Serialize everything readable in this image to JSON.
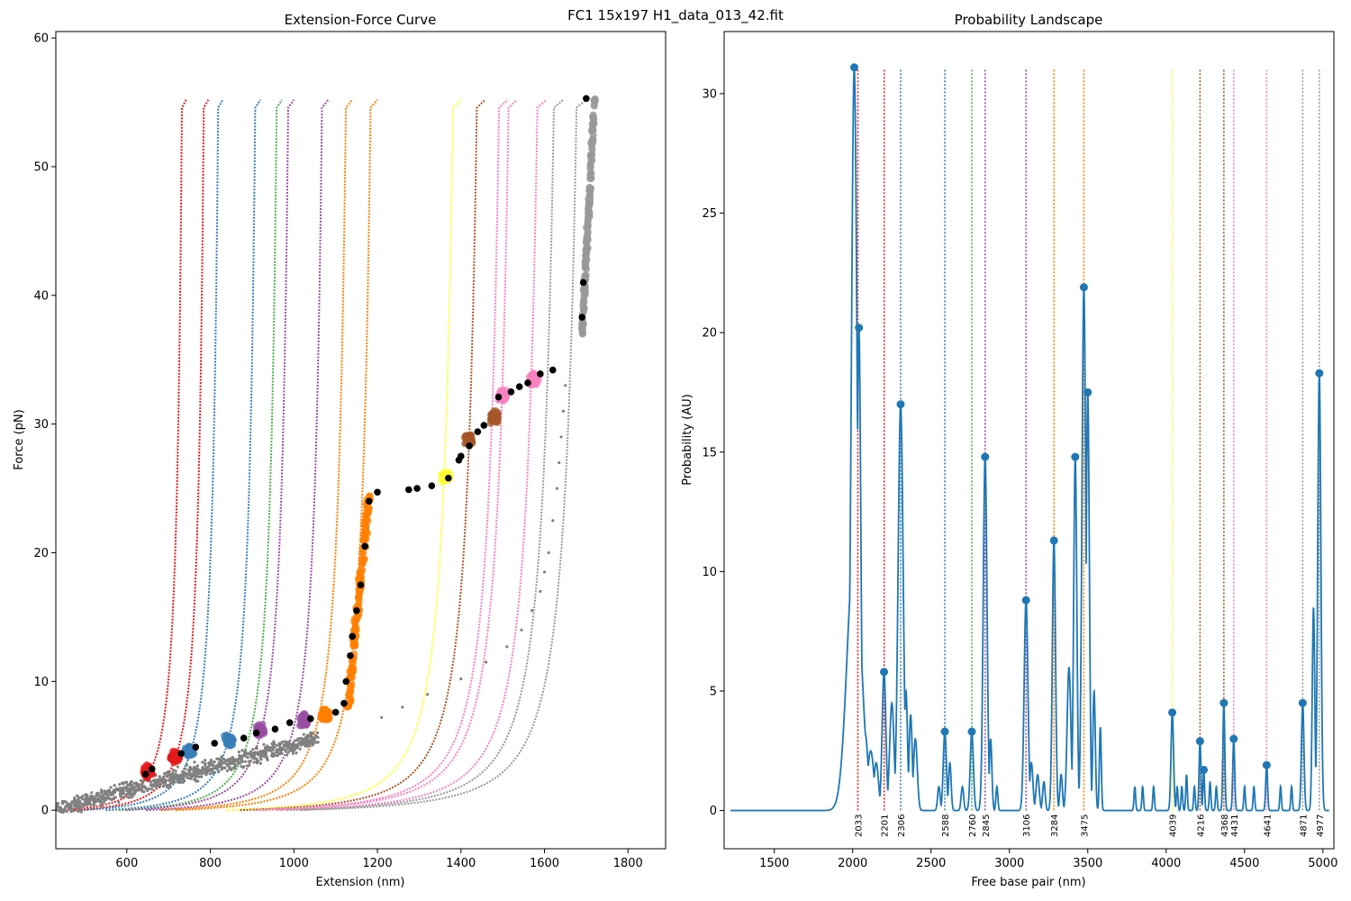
{
  "figure_title": "FC1 15x197 H1_data_013_42.fit",
  "chart_data": [
    {
      "type": "scatter",
      "title": "Extension-Force Curve",
      "xlabel": "Extension (nm)",
      "ylabel": "Force (pN)",
      "xlim": [
        430,
        1890
      ],
      "ylim": [
        -3,
        60.5
      ],
      "xticks": [
        600,
        800,
        1000,
        1200,
        1400,
        1600,
        1800
      ],
      "yticks": [
        0,
        10,
        20,
        30,
        40,
        50,
        60
      ],
      "grid": false,
      "colors": {
        "red": "#e41a1c",
        "blue": "#377eb8",
        "green": "#4daf4a",
        "purple": "#984ea3",
        "orange": "#ff7f00",
        "yellow": "#ffff33",
        "brown": "#a65628",
        "pink": "#f781bf",
        "gray": "#999999",
        "raw": "#808080",
        "black": "#000000"
      },
      "model_curves": [
        {
          "color": "red",
          "x_at_top": 742,
          "f_top": 55.2
        },
        {
          "color": "red",
          "x_at_top": 795,
          "f_top": 55.2
        },
        {
          "color": "blue",
          "x_at_top": 830,
          "f_top": 55.2
        },
        {
          "color": "blue",
          "x_at_top": 920,
          "f_top": 55.2
        },
        {
          "color": "green",
          "x_at_top": 972,
          "f_top": 55.2
        },
        {
          "color": "purple",
          "x_at_top": 1000,
          "f_top": 55.2
        },
        {
          "color": "purple",
          "x_at_top": 1082,
          "f_top": 55.2
        },
        {
          "color": "orange",
          "x_at_top": 1140,
          "f_top": 55.2
        },
        {
          "color": "orange",
          "x_at_top": 1200,
          "f_top": 55.2
        },
        {
          "color": "yellow",
          "x_at_top": 1400,
          "f_top": 55.2
        },
        {
          "color": "brown",
          "x_at_top": 1458,
          "f_top": 55.2
        },
        {
          "color": "pink",
          "x_at_top": 1512,
          "f_top": 55.2
        },
        {
          "color": "pink",
          "x_at_top": 1535,
          "f_top": 55.2
        },
        {
          "color": "pink",
          "x_at_top": 1605,
          "f_top": 55.2
        },
        {
          "color": "gray",
          "x_at_top": 1645,
          "f_top": 55.2
        },
        {
          "color": "gray",
          "x_at_top": 1700,
          "f_top": 55.2
        }
      ],
      "clusters": [
        {
          "color": "red",
          "x": 650,
          "f": 3.0
        },
        {
          "color": "red",
          "x": 715,
          "f": 4.2
        },
        {
          "color": "blue",
          "x": 750,
          "f": 4.6
        },
        {
          "color": "blue",
          "x": 845,
          "f": 5.4
        },
        {
          "color": "purple",
          "x": 920,
          "f": 6.2
        },
        {
          "color": "purple",
          "x": 1025,
          "f": 7.0
        },
        {
          "color": "orange",
          "x": 1075,
          "f": 7.4
        },
        {
          "color": "yellow",
          "x": 1362,
          "f": 26.0
        },
        {
          "color": "brown",
          "x": 1420,
          "f": 28.8
        },
        {
          "color": "brown",
          "x": 1478,
          "f": 30.5
        },
        {
          "color": "pink",
          "x": 1500,
          "f": 32.2
        },
        {
          "color": "pink",
          "x": 1575,
          "f": 33.5
        }
      ],
      "orange_vertical": {
        "x_start": 1130,
        "f_start": 8,
        "x_end": 1180,
        "f_end": 24.5
      },
      "gray_vertical": {
        "x_start": 1690,
        "f_start": 37,
        "x_end": 1720,
        "f_end": 55.3
      },
      "black_points": [
        [
          645,
          2.8
        ],
        [
          660,
          3.2
        ],
        [
          730,
          4.4
        ],
        [
          765,
          4.9
        ],
        [
          810,
          5.2
        ],
        [
          880,
          5.6
        ],
        [
          910,
          6.0
        ],
        [
          955,
          6.3
        ],
        [
          990,
          6.8
        ],
        [
          1040,
          7.1
        ],
        [
          1100,
          7.6
        ],
        [
          1120,
          8.3
        ],
        [
          1125,
          10.0
        ],
        [
          1135,
          12.0
        ],
        [
          1140,
          13.5
        ],
        [
          1150,
          15.5
        ],
        [
          1160,
          17.5
        ],
        [
          1170,
          20.5
        ],
        [
          1180,
          24.0
        ],
        [
          1200,
          24.7
        ],
        [
          1275,
          24.9
        ],
        [
          1295,
          25.0
        ],
        [
          1330,
          25.2
        ],
        [
          1370,
          25.8
        ],
        [
          1395,
          27.2
        ],
        [
          1400,
          27.5
        ],
        [
          1420,
          28.3
        ],
        [
          1440,
          29.4
        ],
        [
          1455,
          29.9
        ],
        [
          1490,
          32.1
        ],
        [
          1520,
          32.5
        ],
        [
          1540,
          32.9
        ],
        [
          1560,
          33.2
        ],
        [
          1590,
          33.9
        ],
        [
          1620,
          34.2
        ],
        [
          1690,
          38.3
        ],
        [
          1693,
          41.0
        ],
        [
          1700,
          55.3
        ]
      ],
      "scatter_trail": [
        [
          1210,
          7.2
        ],
        [
          1260,
          8.0
        ],
        [
          1320,
          9.0
        ],
        [
          1400,
          10.2
        ],
        [
          1460,
          11.5
        ],
        [
          1510,
          12.7
        ],
        [
          1545,
          14.0
        ],
        [
          1570,
          15.5
        ],
        [
          1590,
          17.0
        ],
        [
          1600,
          18.5
        ],
        [
          1610,
          20.0
        ],
        [
          1620,
          22.5
        ],
        [
          1630,
          25.0
        ],
        [
          1635,
          27.0
        ],
        [
          1640,
          29.0
        ],
        [
          1645,
          31.0
        ],
        [
          1650,
          33.0
        ]
      ]
    },
    {
      "type": "line",
      "title": "Probability Landscape",
      "xlabel": "Free base pair (nm)",
      "ylabel": "Probability (AU)",
      "xlim": [
        1180,
        5070
      ],
      "ylim": [
        -1.6,
        32.6
      ],
      "xticks": [
        1500,
        2000,
        2500,
        3000,
        3500,
        4000,
        4500,
        5000
      ],
      "yticks": [
        0,
        5,
        10,
        15,
        20,
        25,
        30
      ],
      "grid": false,
      "line_color": "#1f77b4",
      "peaks": [
        {
          "x": 2010,
          "y": 31.1,
          "w": 18
        },
        {
          "x": 2040,
          "y": 20.2,
          "w": 12
        },
        {
          "x": 2080,
          "y": 3.2,
          "w": 18
        },
        {
          "x": 2115,
          "y": 2.5,
          "w": 20
        },
        {
          "x": 2150,
          "y": 2.0,
          "w": 15
        },
        {
          "x": 2200,
          "y": 5.8,
          "w": 12
        },
        {
          "x": 2250,
          "y": 4.5,
          "w": 14
        },
        {
          "x": 2306,
          "y": 17.0,
          "w": 16
        },
        {
          "x": 2340,
          "y": 5.0,
          "w": 10
        },
        {
          "x": 2370,
          "y": 4.0,
          "w": 10
        },
        {
          "x": 2400,
          "y": 3.0,
          "w": 12
        },
        {
          "x": 2550,
          "y": 1.0,
          "w": 8
        },
        {
          "x": 2588,
          "y": 3.3,
          "w": 10
        },
        {
          "x": 2620,
          "y": 2.0,
          "w": 8
        },
        {
          "x": 2700,
          "y": 1.0,
          "w": 8
        },
        {
          "x": 2760,
          "y": 3.3,
          "w": 10
        },
        {
          "x": 2845,
          "y": 14.8,
          "w": 12
        },
        {
          "x": 2880,
          "y": 3.0,
          "w": 8
        },
        {
          "x": 2920,
          "y": 1.0,
          "w": 6
        },
        {
          "x": 3106,
          "y": 8.8,
          "w": 12
        },
        {
          "x": 3140,
          "y": 2.0,
          "w": 10
        },
        {
          "x": 3180,
          "y": 1.5,
          "w": 10
        },
        {
          "x": 3220,
          "y": 1.2,
          "w": 8
        },
        {
          "x": 3284,
          "y": 11.3,
          "w": 10
        },
        {
          "x": 3330,
          "y": 1.5,
          "w": 8
        },
        {
          "x": 3380,
          "y": 6.0,
          "w": 12
        },
        {
          "x": 3420,
          "y": 14.8,
          "w": 10
        },
        {
          "x": 3475,
          "y": 21.9,
          "w": 12
        },
        {
          "x": 3500,
          "y": 17.5,
          "w": 10
        },
        {
          "x": 3540,
          "y": 5.0,
          "w": 8
        },
        {
          "x": 3580,
          "y": 3.5,
          "w": 6
        },
        {
          "x": 3800,
          "y": 1.0,
          "w": 5
        },
        {
          "x": 3850,
          "y": 1.0,
          "w": 5
        },
        {
          "x": 3920,
          "y": 1.0,
          "w": 5
        },
        {
          "x": 4039,
          "y": 4.1,
          "w": 8
        },
        {
          "x": 4070,
          "y": 1.0,
          "w": 5
        },
        {
          "x": 4100,
          "y": 1.0,
          "w": 5
        },
        {
          "x": 4130,
          "y": 1.5,
          "w": 5
        },
        {
          "x": 4180,
          "y": 1.0,
          "w": 5
        },
        {
          "x": 4216,
          "y": 2.9,
          "w": 6
        },
        {
          "x": 4240,
          "y": 1.7,
          "w": 5
        },
        {
          "x": 4280,
          "y": 1.2,
          "w": 5
        },
        {
          "x": 4320,
          "y": 1.0,
          "w": 5
        },
        {
          "x": 4368,
          "y": 4.5,
          "w": 6
        },
        {
          "x": 4431,
          "y": 3.0,
          "w": 6
        },
        {
          "x": 4500,
          "y": 1.0,
          "w": 5
        },
        {
          "x": 4560,
          "y": 1.0,
          "w": 5
        },
        {
          "x": 4641,
          "y": 1.9,
          "w": 6
        },
        {
          "x": 4730,
          "y": 1.0,
          "w": 5
        },
        {
          "x": 4800,
          "y": 1.0,
          "w": 5
        },
        {
          "x": 4871,
          "y": 4.5,
          "w": 8
        },
        {
          "x": 4940,
          "y": 8.5,
          "w": 8
        },
        {
          "x": 4977,
          "y": 18.3,
          "w": 10
        }
      ],
      "markers": [
        [
          2010,
          31.1
        ],
        [
          2040,
          20.2
        ],
        [
          2200,
          5.8
        ],
        [
          2306,
          17.0
        ],
        [
          2588,
          3.3
        ],
        [
          2760,
          3.3
        ],
        [
          2845,
          14.8
        ],
        [
          3106,
          8.8
        ],
        [
          3284,
          11.3
        ],
        [
          3420,
          14.8
        ],
        [
          3475,
          21.9
        ],
        [
          3500,
          17.5
        ],
        [
          4039,
          4.1
        ],
        [
          4216,
          2.9
        ],
        [
          4240,
          1.7
        ],
        [
          4368,
          4.5
        ],
        [
          4431,
          3.0
        ],
        [
          4641,
          1.9
        ],
        [
          4871,
          4.5
        ],
        [
          4977,
          18.3
        ]
      ],
      "vlines": [
        {
          "x": 2033,
          "label": "2033",
          "color": "red"
        },
        {
          "x": 2201,
          "label": "2201",
          "color": "red"
        },
        {
          "x": 2306,
          "label": "2306",
          "color": "blue"
        },
        {
          "x": 2588,
          "label": "2588",
          "color": "blue"
        },
        {
          "x": 2760,
          "label": "2760",
          "color": "green"
        },
        {
          "x": 2845,
          "label": "2845",
          "color": "purple"
        },
        {
          "x": 3106,
          "label": "3106",
          "color": "purple"
        },
        {
          "x": 3284,
          "label": "3284",
          "color": "orange"
        },
        {
          "x": 3475,
          "label": "3475",
          "color": "orange"
        },
        {
          "x": 4039,
          "label": "4039",
          "color": "yellow"
        },
        {
          "x": 4216,
          "label": "4216",
          "color": "brown"
        },
        {
          "x": 4368,
          "label": "4368",
          "color": "brown"
        },
        {
          "x": 4431,
          "label": "4431",
          "color": "pink"
        },
        {
          "x": 4641,
          "label": "4641",
          "color": "pink"
        },
        {
          "x": 4871,
          "label": "4871",
          "color": "gray"
        },
        {
          "x": 4977,
          "label": "4977",
          "color": "gray"
        }
      ],
      "vline_top": 31.0
    }
  ]
}
